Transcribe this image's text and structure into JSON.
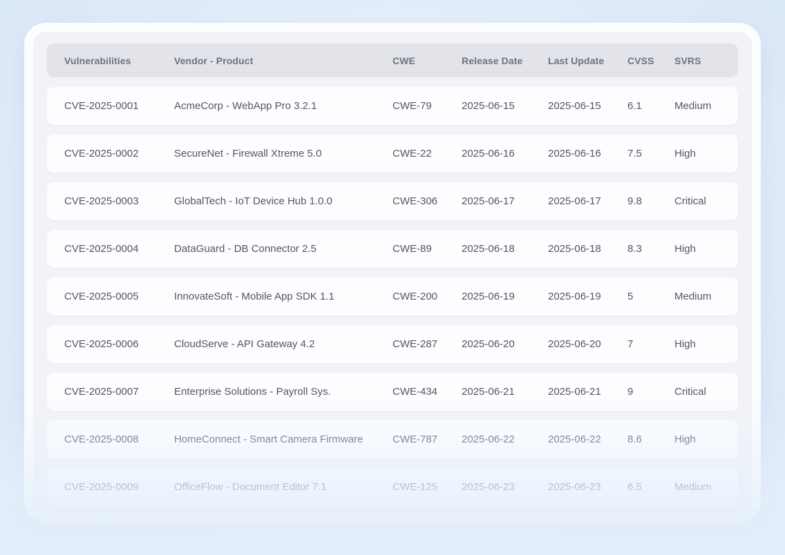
{
  "colors": {
    "page_background": "#e3edfb",
    "card_border": "#fcfdff",
    "card_background": "#f2f3f6",
    "header_background": "#e3e3ea",
    "row_background": "#fdfdff",
    "header_text": "#6e737e",
    "row_text": "#53565c"
  },
  "table": {
    "columns": [
      "Vulnerabilities",
      "Vendor - Product",
      "CWE",
      "Release Date",
      "Last Update",
      "CVSS",
      "SVRS"
    ],
    "rows": [
      {
        "cve": "CVE-2025-0001",
        "vendor_product": "AcmeCorp - WebApp Pro 3.2.1",
        "cwe": "CWE-79",
        "release_date": "2025-06-15",
        "last_update": "2025-06-15",
        "cvss": "6.1",
        "svrs": "Medium"
      },
      {
        "cve": "CVE-2025-0002",
        "vendor_product": "SecureNet - Firewall Xtreme 5.0",
        "cwe": "CWE-22",
        "release_date": "2025-06-16",
        "last_update": "2025-06-16",
        "cvss": "7.5",
        "svrs": "High"
      },
      {
        "cve": "CVE-2025-0003",
        "vendor_product": "GlobalTech - IoT Device Hub 1.0.0",
        "cwe": "CWE-306",
        "release_date": "2025-06-17",
        "last_update": "2025-06-17",
        "cvss": "9.8",
        "svrs": "Critical"
      },
      {
        "cve": "CVE-2025-0004",
        "vendor_product": "DataGuard - DB Connector 2.5",
        "cwe": "CWE-89",
        "release_date": "2025-06-18",
        "last_update": "2025-06-18",
        "cvss": "8.3",
        "svrs": "High"
      },
      {
        "cve": "CVE-2025-0005",
        "vendor_product": "InnovateSoft - Mobile App SDK 1.1",
        "cwe": "CWE-200",
        "release_date": "2025-06-19",
        "last_update": "2025-06-19",
        "cvss": "5",
        "svrs": "Medium"
      },
      {
        "cve": "CVE-2025-0006",
        "vendor_product": "CloudServe - API Gateway 4.2",
        "cwe": "CWE-287",
        "release_date": "2025-06-20",
        "last_update": "2025-06-20",
        "cvss": "7",
        "svrs": "High"
      },
      {
        "cve": "CVE-2025-0007",
        "vendor_product": "Enterprise Solutions - Payroll Sys.",
        "cwe": "CWE-434",
        "release_date": "2025-06-21",
        "last_update": "2025-06-21",
        "cvss": "9",
        "svrs": "Critical"
      },
      {
        "cve": "CVE-2025-0008",
        "vendor_product": "HomeConnect - Smart Camera Firmware",
        "cwe": "CWE-787",
        "release_date": "2025-06-22",
        "last_update": "2025-06-22",
        "cvss": "8.6",
        "svrs": "High"
      },
      {
        "cve": "CVE-2025-0009",
        "vendor_product": "OfficeFlow - Document Editor 7.1",
        "cwe": "CWE-125",
        "release_date": "2025-06-23",
        "last_update": "2025-06-23",
        "cvss": "6.5",
        "svrs": "Medium"
      }
    ]
  }
}
